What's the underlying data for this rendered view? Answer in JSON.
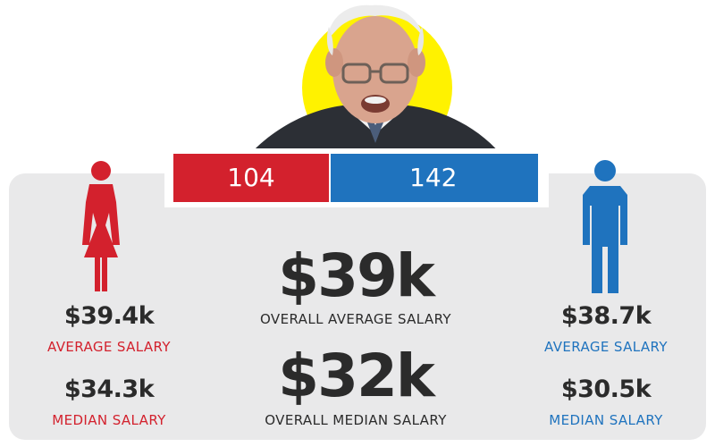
{
  "bars": {
    "female_count": "104",
    "male_count": "142"
  },
  "female": {
    "average_value": "$39.4k",
    "average_label": "AVERAGE SALARY",
    "median_value": "$34.3k",
    "median_label": "MEDIAN SALARY"
  },
  "male": {
    "average_value": "$38.7k",
    "average_label": "AVERAGE SALARY",
    "median_value": "$30.5k",
    "median_label": "MEDIAN SALARY"
  },
  "overall": {
    "average_value": "$39k",
    "average_label": "OVERALL AVERAGE SALARY",
    "median_value": "$32k",
    "median_label": "OVERALL MEDIAN SALARY"
  },
  "colors": {
    "female": "#d3212d",
    "male": "#1f73be",
    "highlight": "#fff200",
    "panel": "#e9e9ea"
  },
  "icons": {
    "female": "female-figure-icon",
    "male": "male-figure-icon"
  }
}
